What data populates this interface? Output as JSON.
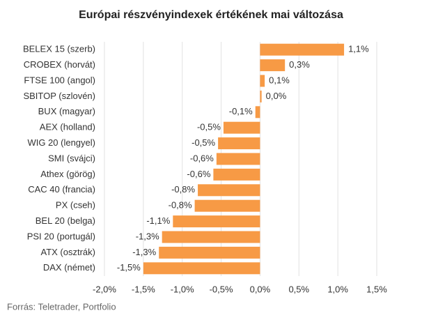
{
  "chart_data": {
    "type": "barh",
    "title": "Európai részvényindexek értékének mai változása",
    "source": "Forrás: Teletrader, Portfolio",
    "categories": [
      "BELEX 15 (szerb)",
      "CROBEX (horvát)",
      "FTSE 100 (angol)",
      "SBITOP (szlovén)",
      "BUX (magyar)",
      "AEX (holland)",
      "WIG 20 (lengyel)",
      "SMI (svájci)",
      "Athex (görög)",
      "CAC 40 (francia)",
      "PX (cseh)",
      "BEL 20 (belga)",
      "PSI 20 (portugál)",
      "ATX (osztrák)",
      "DAX (német)"
    ],
    "values": [
      1.08,
      0.32,
      0.06,
      0.02,
      -0.06,
      -0.47,
      -0.54,
      -0.56,
      -0.6,
      -0.8,
      -0.84,
      -1.12,
      -1.26,
      -1.3,
      -1.5
    ],
    "value_labels": [
      "1,1%",
      "0,3%",
      "0,1%",
      "0,0%",
      "-0,1%",
      "-0,5%",
      "-0,5%",
      "-0,6%",
      "-0,6%",
      "-0,8%",
      "-0,8%",
      "-1,1%",
      "-1,3%",
      "-1,3%",
      "-1,5%"
    ],
    "color": "#f79a45",
    "xlim": [
      -2,
      1.5
    ],
    "xticks": [
      {
        "value": -2,
        "label": "-2,0%"
      },
      {
        "value": -1.5,
        "label": "-1,5%"
      },
      {
        "value": -1,
        "label": "-1,0%"
      },
      {
        "value": -0.5,
        "label": "-0,5%"
      },
      {
        "value": 0,
        "label": "0,0%"
      },
      {
        "value": 0.5,
        "label": "0,5%"
      },
      {
        "value": 1,
        "label": "1,0%"
      },
      {
        "value": 1.5,
        "label": "1,5%"
      }
    ],
    "grid": true
  }
}
